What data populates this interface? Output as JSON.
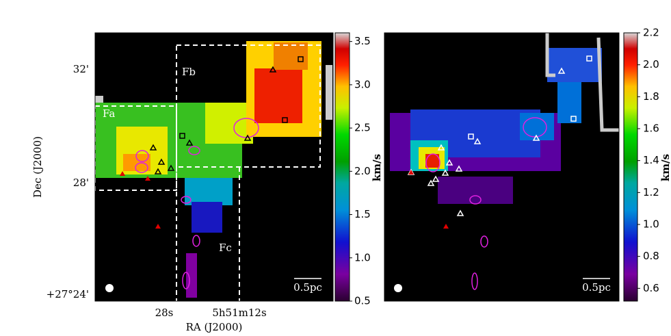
{
  "chart_data": [
    {
      "type": "heatmap",
      "xlabel": "RA (J2000)",
      "ylabel": "Dec (J2000)",
      "xtick_labels": [
        "28s",
        "5h51m12s"
      ],
      "ytick_labels": [
        "32'",
        "28'",
        "+27°24'"
      ],
      "regions": [
        "Fa",
        "Fb",
        "Fc"
      ],
      "scale_bar": "0.5pc",
      "colorbar_label": "km/s",
      "clim": [
        0.5,
        3.6
      ],
      "cticks": [
        0.5,
        {
          "value": 1.0,
          "label": "1.0"
        },
        1.5,
        {
          "value": 2.0,
          "label": "2.0"
        },
        2.5,
        {
          "value": 3.0,
          "label": "3.0"
        },
        3.5
      ]
    },
    {
      "type": "heatmap",
      "scale_bar": "0.5pc",
      "colorbar_label": "km/s",
      "clim": [
        0.52,
        2.2
      ],
      "cticks": [
        0.6,
        0.8,
        {
          "value": 1.0,
          "label": "1.0"
        },
        1.2,
        1.4,
        1.6,
        1.8,
        {
          "value": 2.0,
          "label": "2.0"
        },
        2.2
      ]
    }
  ]
}
